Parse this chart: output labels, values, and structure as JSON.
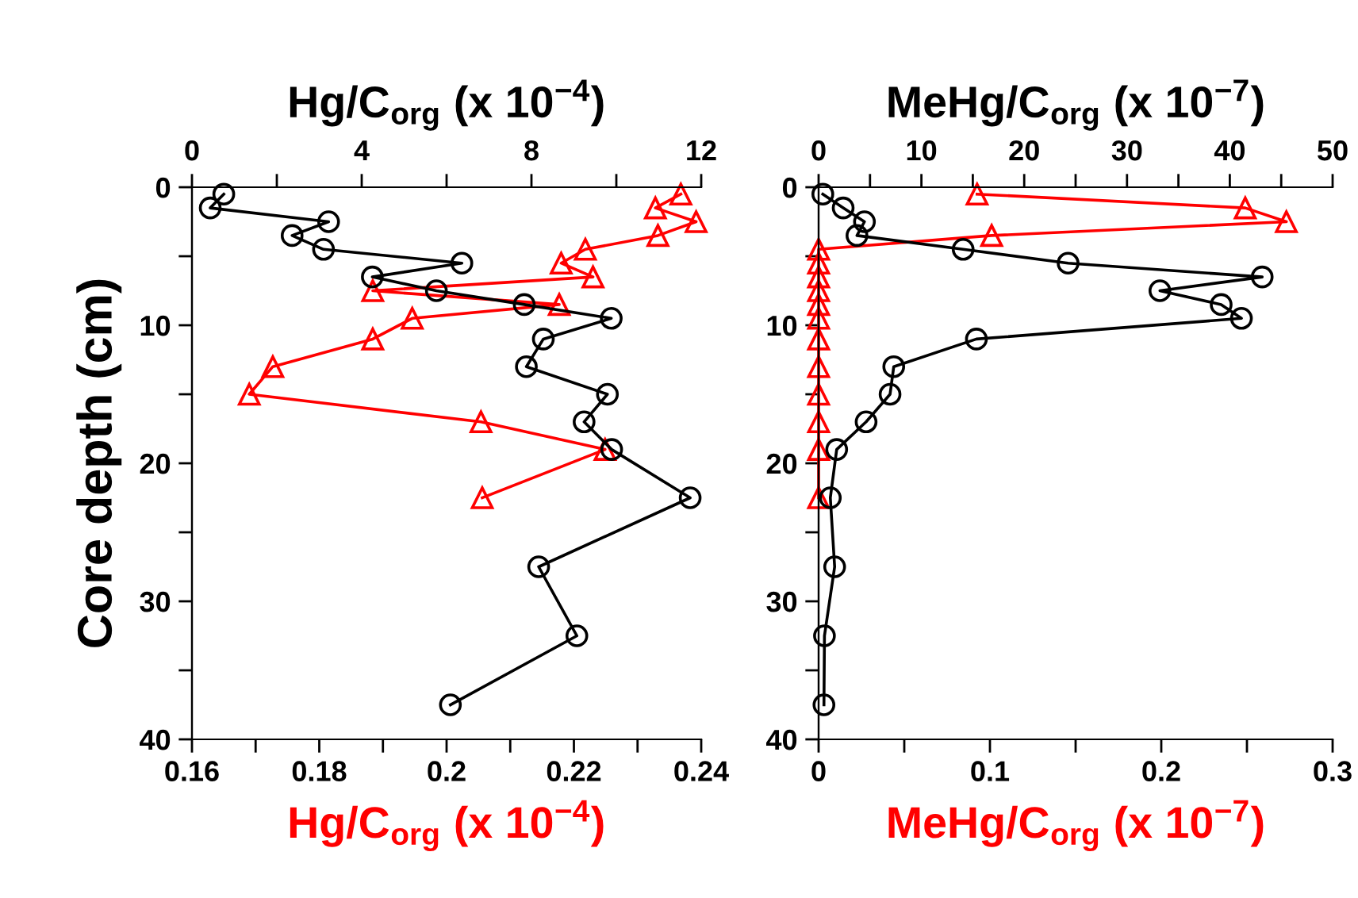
{
  "chart_data": [
    {
      "type": "line",
      "xlabel": "Hg/C$_{org}$ (x 10$^{−4}$)",
      "x2label": "Hg/C$_{org}$ (x 10$^{−4}$)",
      "ylabel": "Core depth (cm)",
      "xlim": [
        0.16,
        0.24
      ],
      "xticks": [
        0.16,
        {
          "value": 0.17,
          "label": null
        },
        0.18,
        {
          "value": 0.19,
          "label": null
        },
        0.2,
        {
          "value": 0.21,
          "label": null
        },
        0.22,
        {
          "value": 0.23,
          "label": null
        },
        0.24
      ],
      "x2lim": [
        0,
        12
      ],
      "x2ticks": [
        0,
        {
          "value": 2,
          "label": null
        },
        4,
        {
          "value": 6,
          "label": null
        },
        8,
        {
          "value": 10,
          "label": null
        },
        12
      ],
      "ylim": [
        40,
        0
      ],
      "yticks": [
        0,
        {
          "value": 5,
          "label": null
        },
        10,
        {
          "value": 15,
          "label": null
        },
        20,
        {
          "value": 25,
          "label": null
        },
        30,
        {
          "value": 35,
          "label": null
        },
        40
      ],
      "grid": false,
      "legend": false,
      "line_style": "solid",
      "series": [
        {
          "color": "#000000",
          "marker": "circle",
          "axis": "x2",
          "x": [
            0.75,
            0.43,
            3.22,
            2.36,
            3.1,
            6.36,
            4.25,
            5.76,
            7.83,
            9.88,
            8.28,
            7.88,
            9.79,
            9.24,
            9.89,
            11.74,
            8.17,
            9.07,
            6.09
          ],
          "values": [
            0.5,
            1.5,
            2.5,
            3.5,
            4.5,
            5.5,
            6.5,
            7.5,
            8.5,
            9.5,
            11,
            13,
            15,
            17,
            19,
            22.5,
            27.5,
            32.5,
            37.5
          ]
        },
        {
          "color": "#ff0000",
          "marker": "triangle",
          "x": [
            0.2368,
            0.2328,
            0.2392,
            0.2332,
            0.2218,
            0.218,
            0.223,
            0.1884,
            0.2177,
            0.1946,
            0.1884,
            0.1727,
            0.169,
            0.2054,
            0.2249,
            0.2056
          ],
          "values": [
            0.5,
            1.5,
            2.5,
            3.5,
            4.5,
            5.5,
            6.5,
            7.5,
            8.5,
            9.5,
            11,
            13,
            15,
            17,
            19,
            22.5
          ]
        }
      ]
    },
    {
      "type": "line",
      "xlabel": "MeHg/C$_{org}$ (x 10$^{−7}$)",
      "x2label": "MeHg/C$_{org}$ (x 10$^{−7}$)",
      "xlim": [
        0,
        0.3
      ],
      "xticks": [
        0,
        {
          "value": 0.05,
          "label": null
        },
        0.1,
        {
          "value": 0.15,
          "label": null
        },
        0.2,
        {
          "value": 0.25,
          "label": null
        },
        0.3
      ],
      "x2lim": [
        0,
        50
      ],
      "x2ticks": [
        0,
        {
          "value": 5,
          "label": null
        },
        10,
        {
          "value": 15,
          "label": null
        },
        20,
        {
          "value": 25,
          "label": null
        },
        30,
        {
          "value": 35,
          "label": null
        },
        40,
        {
          "value": 45,
          "label": null
        },
        50
      ],
      "ylim": [
        40,
        0
      ],
      "yticks": [
        0,
        {
          "value": 5,
          "label": null
        },
        10,
        {
          "value": 15,
          "label": null
        },
        20,
        {
          "value": 25,
          "label": null
        },
        30,
        {
          "value": 35,
          "label": null
        },
        40
      ],
      "grid": false,
      "legend": false,
      "line_style": "solid",
      "series": [
        {
          "color": "#000000",
          "marker": "circle",
          "axis": "x2",
          "x": [
            0.41,
            2.39,
            4.46,
            3.73,
            14.06,
            24.27,
            43.15,
            33.2,
            39.16,
            41.13,
            15.35,
            7.31,
            6.95,
            4.62,
            1.76,
            1.14,
            1.56,
            0.57,
            0.52
          ],
          "values": [
            0.5,
            1.5,
            2.5,
            3.5,
            4.5,
            5.5,
            6.5,
            7.5,
            8.5,
            9.5,
            11,
            13,
            15,
            17,
            19,
            22.5,
            27.5,
            32.5,
            37.5
          ]
        },
        {
          "color": "#ff0000",
          "marker": "triangle",
          "x": [
            0.0925,
            0.249,
            0.273,
            0.101,
            0,
            0,
            0,
            0,
            0,
            0,
            0,
            0,
            0,
            0,
            0,
            0
          ],
          "values": [
            0.5,
            1.5,
            2.5,
            3.5,
            4.5,
            5.5,
            6.5,
            7.5,
            8.5,
            9.5,
            11,
            13,
            15,
            17,
            19,
            22.5
          ]
        }
      ]
    }
  ]
}
